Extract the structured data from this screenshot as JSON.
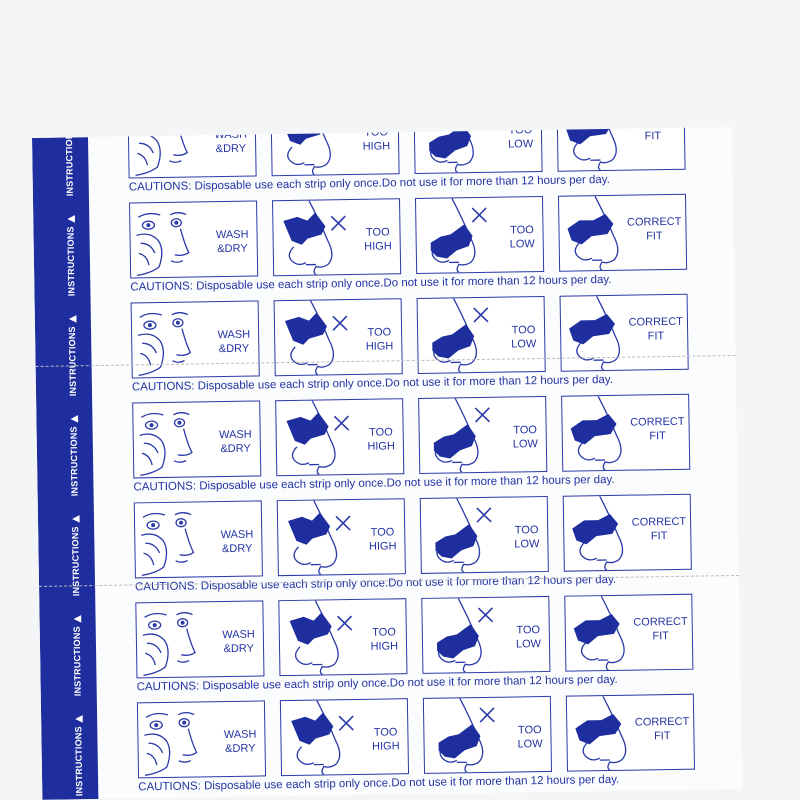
{
  "band_label": "INSTRUCTIONS ▶",
  "panels": [
    {
      "id": "wash",
      "label_1": "WASH",
      "label_2": "&DRY",
      "icon": "face-washing-icon"
    },
    {
      "id": "too-high",
      "label_1": "TOO",
      "label_2": "HIGH",
      "icon": "nose-strip-too-high-icon"
    },
    {
      "id": "too-low",
      "label_1": "TOO",
      "label_2": "LOW",
      "icon": "nose-strip-too-low-icon"
    },
    {
      "id": "correct",
      "label_1": "CORRECT",
      "label_2": "FIT",
      "icon": "nose-strip-correct-icon"
    }
  ],
  "caution": "CAUTIONS: Disposable use each strip only once.Do not use it for more than 12 hours per day.",
  "row_count": 7,
  "colors": {
    "brand_blue": "#1f2e9e",
    "ink": "#2233a3"
  }
}
